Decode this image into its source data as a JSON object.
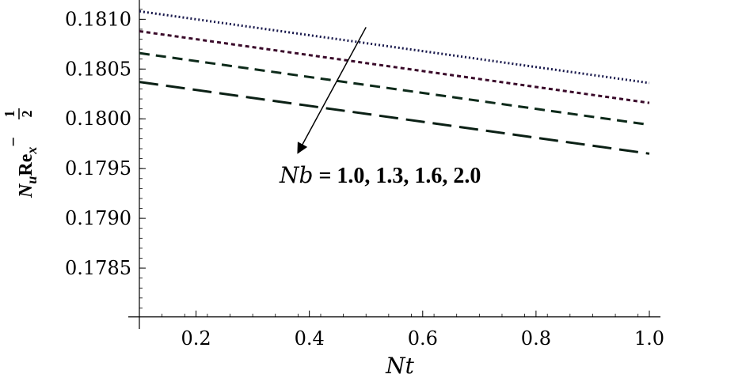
{
  "chart_data": {
    "type": "line",
    "xlabel": "Nt",
    "ylabel": {
      "base": "N",
      "base_sub": "u",
      "mid": "Re",
      "mid_sub": "x",
      "exp_sign": "−",
      "exp_num": "1",
      "exp_den": "2"
    },
    "xlim": [
      0.1,
      1.0
    ],
    "ylim": [
      0.178,
      0.18113
    ],
    "x_axis_crossing_y": 0.17801,
    "x_ticks": [
      0.2,
      0.4,
      0.6,
      0.8,
      1.0
    ],
    "x_tick_labels": [
      "0.2",
      "0.4",
      "0.6",
      "0.8",
      "1.0"
    ],
    "y_ticks": [
      0.1785,
      0.179,
      0.1795,
      0.18,
      0.1805,
      0.181
    ],
    "y_tick_labels": [
      "0.1785",
      "0.1790",
      "0.1795",
      "0.1800",
      "0.1805",
      "0.1810"
    ],
    "series": [
      {
        "param": "1.0",
        "x": [
          0.1,
          1.0
        ],
        "y": [
          0.18108,
          0.18036
        ],
        "color": "#1a1a4d",
        "dash": "dotted"
      },
      {
        "param": "1.3",
        "x": [
          0.1,
          1.0
        ],
        "y": [
          0.18088,
          0.18016
        ],
        "color": "#3a0a2a",
        "dash": "short"
      },
      {
        "param": "1.6",
        "x": [
          0.1,
          1.0
        ],
        "y": [
          0.18066,
          0.17994
        ],
        "color": "#0d2a1a",
        "dash": "medium"
      },
      {
        "param": "2.0",
        "x": [
          0.1,
          1.0
        ],
        "y": [
          0.18037,
          0.17965
        ],
        "color": "#0a1f14",
        "dash": "long"
      }
    ],
    "annotation": {
      "variable": "Nb",
      "values_text": " = 1.0, 1.3, 1.6, 2.0",
      "arrow_from": [
        0.5,
        0.18092
      ],
      "arrow_to": [
        0.38,
        0.17966
      ]
    },
    "grid": false,
    "legend": "none"
  }
}
